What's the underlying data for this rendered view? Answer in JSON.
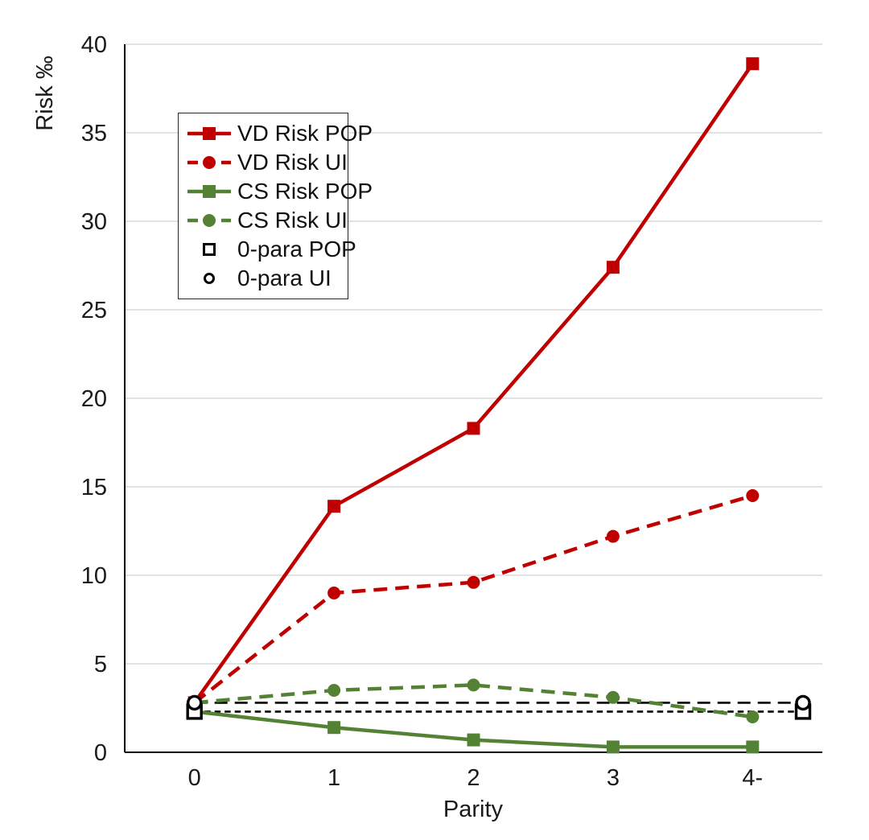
{
  "chart_data": {
    "type": "line",
    "title": "",
    "xlabel": "Parity",
    "ylabel": "Risk ‰",
    "categories": [
      "0",
      "1",
      "2",
      "3",
      "4-"
    ],
    "ylim": [
      0,
      40
    ],
    "yticks": [
      0,
      5,
      10,
      15,
      20,
      25,
      30,
      35,
      40
    ],
    "grid": "horizontal-light-gray",
    "legend_position": "upper-left-inside",
    "series": [
      {
        "name": "VD Risk POP",
        "color": "#C00000",
        "line": "solid",
        "marker": "filled-square",
        "values": [
          2.8,
          13.9,
          18.3,
          27.4,
          38.9
        ]
      },
      {
        "name": "VD Risk UI",
        "color": "#C00000",
        "line": "dashed",
        "marker": "filled-circle",
        "values": [
          2.8,
          9.0,
          9.6,
          12.2,
          14.5
        ]
      },
      {
        "name": "CS Risk POP",
        "color": "#548235",
        "line": "solid",
        "marker": "filled-square",
        "values": [
          2.3,
          1.4,
          0.7,
          0.3,
          0.3
        ]
      },
      {
        "name": "CS Risk UI",
        "color": "#548235",
        "line": "dashed",
        "marker": "filled-circle",
        "values": [
          2.8,
          3.5,
          3.8,
          3.1,
          2.0
        ]
      }
    ],
    "reference_lines": [
      {
        "name": "0-para POP",
        "color": "#000000",
        "line": "short-dash",
        "marker": "open-square",
        "value": 2.3
      },
      {
        "name": "0-para UI",
        "color": "#000000",
        "line": "long-dash",
        "marker": "open-circle",
        "value": 2.8
      }
    ]
  },
  "colors": {
    "vd_red": "#C00000",
    "cs_green": "#548235",
    "reference_black": "#000000",
    "gridline": "#D9D9D9",
    "axis": "#000000"
  }
}
